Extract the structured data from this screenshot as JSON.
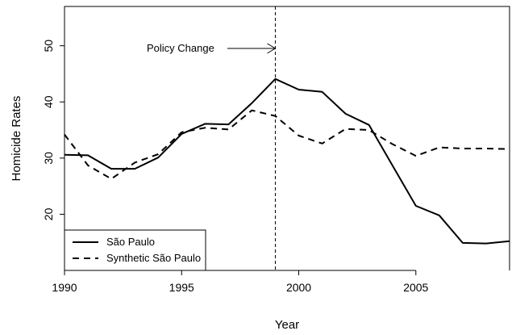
{
  "chart_data": {
    "type": "line",
    "title": "",
    "xlabel": "Year",
    "ylabel": "Homicide Rates",
    "xlim": [
      1990,
      2009
    ],
    "ylim": [
      10,
      57
    ],
    "x_ticks": [
      1990,
      1995,
      2000,
      2005
    ],
    "y_ticks": [
      20,
      30,
      40,
      50
    ],
    "grid": false,
    "legend_position": "bottom-left",
    "x": [
      1990,
      1991,
      1992,
      1993,
      1994,
      1995,
      1996,
      1997,
      1998,
      1999,
      2000,
      2001,
      2002,
      2003,
      2004,
      2005,
      2006,
      2007,
      2008,
      2009
    ],
    "series": [
      {
        "name": "São Paulo",
        "style": "solid",
        "color": "#000000",
        "values": [
          30.6,
          30.5,
          28.1,
          28.1,
          30.1,
          34.3,
          36.1,
          36.0,
          39.8,
          44.1,
          42.2,
          41.8,
          37.9,
          35.9,
          28.7,
          21.5,
          19.8,
          14.9,
          14.8,
          15.2
        ]
      },
      {
        "name": "Synthetic São Paulo",
        "style": "dashed",
        "color": "#000000",
        "values": [
          34.2,
          28.7,
          26.3,
          29.2,
          30.7,
          34.6,
          35.4,
          35.1,
          38.5,
          37.5,
          34.0,
          32.6,
          35.2,
          35.0,
          32.5,
          30.4,
          31.9,
          31.7,
          31.7,
          31.6
        ]
      }
    ],
    "annotations": [
      {
        "text": "Policy Change",
        "x": 1999,
        "type": "vertical-dashed-line-with-arrow"
      }
    ]
  }
}
